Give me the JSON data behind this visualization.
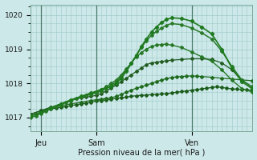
{
  "xlabel": "Pression niveau de la mer( hPa )",
  "bg_color": "#cce8e8",
  "grid_color": "#a0c8c8",
  "ylim": [
    1016.6,
    1020.3
  ],
  "xlim": [
    0,
    44
  ],
  "xtick_positions": [
    2,
    13,
    32
  ],
  "xtick_labels": [
    "Jeu",
    "Sam",
    "Ven"
  ],
  "ytick_positions": [
    1017,
    1018,
    1019,
    1020
  ],
  "series": [
    {
      "x": [
        0,
        1,
        2,
        3,
        4,
        5,
        6,
        7,
        8,
        9,
        10,
        11,
        12,
        13,
        14,
        15,
        16,
        17,
        18,
        19,
        20,
        21,
        22,
        23,
        24,
        25,
        26,
        27,
        28,
        29,
        30,
        31,
        32,
        33,
        34,
        35,
        36,
        37,
        38,
        39,
        40,
        41,
        42,
        43,
        44
      ],
      "y": [
        1017.05,
        1017.1,
        1017.15,
        1017.2,
        1017.25,
        1017.28,
        1017.3,
        1017.32,
        1017.35,
        1017.38,
        1017.4,
        1017.42,
        1017.45,
        1017.48,
        1017.5,
        1017.52,
        1017.54,
        1017.56,
        1017.58,
        1017.6,
        1017.62,
        1017.64,
        1017.65,
        1017.66,
        1017.67,
        1017.68,
        1017.69,
        1017.7,
        1017.72,
        1017.74,
        1017.76,
        1017.78,
        1017.8,
        1017.82,
        1017.84,
        1017.86,
        1017.88,
        1017.9,
        1017.88,
        1017.86,
        1017.84,
        1017.83,
        1017.82,
        1017.81,
        1017.8
      ],
      "color": "#1a5c1a",
      "lw": 0.9,
      "marker": "D",
      "ms": 2.0
    },
    {
      "x": [
        0,
        2,
        4,
        6,
        8,
        10,
        12,
        13,
        14,
        15,
        16,
        17,
        18,
        19,
        20,
        21,
        22,
        23,
        24,
        25,
        26,
        27,
        28,
        29,
        30,
        31,
        32,
        33,
        34,
        36,
        38,
        40,
        42,
        44
      ],
      "y": [
        1017.1,
        1017.2,
        1017.3,
        1017.35,
        1017.4,
        1017.45,
        1017.5,
        1017.52,
        1017.54,
        1017.56,
        1017.58,
        1017.62,
        1017.68,
        1017.74,
        1017.8,
        1017.86,
        1017.9,
        1017.95,
        1018.0,
        1018.05,
        1018.1,
        1018.14,
        1018.17,
        1018.19,
        1018.2,
        1018.21,
        1018.22,
        1018.21,
        1018.2,
        1018.18,
        1018.15,
        1018.13,
        1018.1,
        1018.08
      ],
      "color": "#1e6b1e",
      "lw": 0.9,
      "marker": "D",
      "ms": 2.0
    },
    {
      "x": [
        0,
        2,
        4,
        6,
        8,
        9,
        10,
        11,
        12,
        13,
        14,
        15,
        16,
        17,
        18,
        19,
        20,
        21,
        22,
        23,
        24,
        25,
        26,
        27,
        28,
        30,
        32,
        34,
        36,
        38,
        40,
        42,
        44
      ],
      "y": [
        1017.1,
        1017.2,
        1017.3,
        1017.4,
        1017.5,
        1017.55,
        1017.58,
        1017.6,
        1017.62,
        1017.65,
        1017.7,
        1017.78,
        1017.86,
        1017.95,
        1018.05,
        1018.15,
        1018.25,
        1018.35,
        1018.45,
        1018.55,
        1018.6,
        1018.62,
        1018.64,
        1018.66,
        1018.68,
        1018.7,
        1018.72,
        1018.72,
        1018.7,
        1018.6,
        1018.4,
        1018.1,
        1017.9
      ],
      "color": "#225c22",
      "lw": 0.9,
      "marker": "D",
      "ms": 2.0
    },
    {
      "x": [
        0,
        1,
        2,
        3,
        4,
        5,
        6,
        7,
        8,
        9,
        10,
        11,
        12,
        13,
        14,
        15,
        16,
        17,
        18,
        19,
        20,
        21,
        22,
        23,
        24,
        25,
        26,
        27,
        28,
        30,
        32,
        34,
        36,
        38,
        40,
        42,
        44
      ],
      "y": [
        1017.0,
        1017.05,
        1017.12,
        1017.18,
        1017.25,
        1017.32,
        1017.38,
        1017.44,
        1017.5,
        1017.55,
        1017.6,
        1017.65,
        1017.7,
        1017.75,
        1017.82,
        1017.9,
        1018.0,
        1018.1,
        1018.25,
        1018.42,
        1018.6,
        1018.78,
        1018.9,
        1019.0,
        1019.08,
        1019.12,
        1019.14,
        1019.15,
        1019.12,
        1019.05,
        1018.92,
        1018.78,
        1018.65,
        1018.4,
        1018.1,
        1017.85,
        1017.75
      ],
      "color": "#267826",
      "lw": 1.0,
      "marker": "D",
      "ms": 2.0
    },
    {
      "x": [
        0,
        2,
        4,
        6,
        8,
        10,
        12,
        13,
        14,
        15,
        16,
        17,
        18,
        19,
        20,
        21,
        22,
        23,
        24,
        25,
        26,
        27,
        28,
        30,
        32,
        34,
        36,
        38,
        40,
        42,
        44
      ],
      "y": [
        1017.05,
        1017.15,
        1017.28,
        1017.4,
        1017.5,
        1017.6,
        1017.68,
        1017.72,
        1017.78,
        1017.85,
        1017.94,
        1018.05,
        1018.2,
        1018.38,
        1018.6,
        1018.82,
        1019.05,
        1019.25,
        1019.4,
        1019.52,
        1019.62,
        1019.7,
        1019.75,
        1019.72,
        1019.62,
        1019.48,
        1019.3,
        1018.95,
        1018.5,
        1018.1,
        1017.9
      ],
      "color": "#2a7a2a",
      "lw": 1.1,
      "marker": "D",
      "ms": 2.0
    },
    {
      "x": [
        0,
        2,
        4,
        6,
        8,
        10,
        12,
        14,
        16,
        17,
        18,
        19,
        20,
        21,
        22,
        23,
        24,
        25,
        26,
        27,
        28,
        30,
        32,
        34,
        36,
        38,
        40,
        42,
        44
      ],
      "y": [
        1017.05,
        1017.15,
        1017.28,
        1017.4,
        1017.52,
        1017.62,
        1017.72,
        1017.82,
        1017.9,
        1018.0,
        1018.15,
        1018.35,
        1018.58,
        1018.82,
        1019.08,
        1019.3,
        1019.5,
        1019.65,
        1019.78,
        1019.87,
        1019.92,
        1019.9,
        1019.82,
        1019.65,
        1019.45,
        1019.0,
        1018.45,
        1018.05,
        1017.85
      ],
      "color": "#1e7a1e",
      "lw": 1.2,
      "marker": "D",
      "ms": 2.2
    }
  ],
  "vlines": [
    2,
    13,
    32
  ],
  "vline_color": "#4a7a6a",
  "ytick_fontsize": 6.5,
  "xtick_fontsize": 7,
  "xlabel_fontsize": 7
}
